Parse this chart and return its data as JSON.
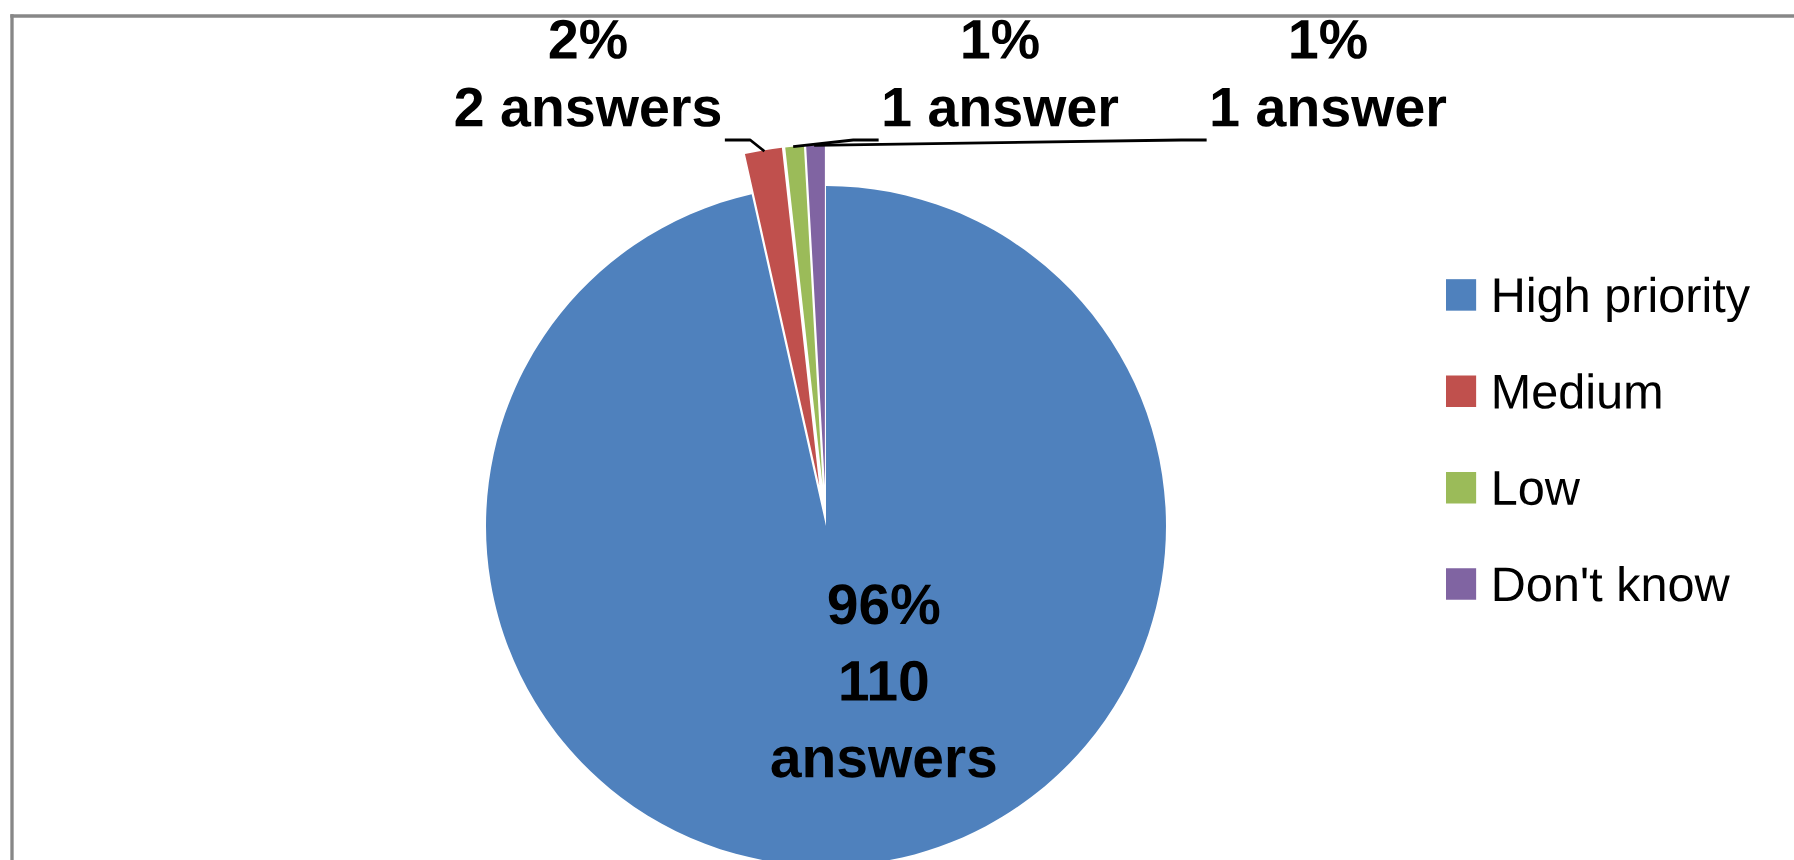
{
  "chart_data": {
    "type": "pie",
    "categories": [
      "High priority",
      "Medium",
      "Low",
      "Don't know"
    ],
    "values": [
      110,
      2,
      1,
      1
    ],
    "colors": [
      "#4f81bd",
      "#c0504d",
      "#9bbb59",
      "#8064a2"
    ],
    "value_labels": [
      "96%\n110\nanswers",
      "2%\n2 answers",
      "1%\n1 answer",
      "1%\n1 answer"
    ],
    "legend": "right"
  }
}
